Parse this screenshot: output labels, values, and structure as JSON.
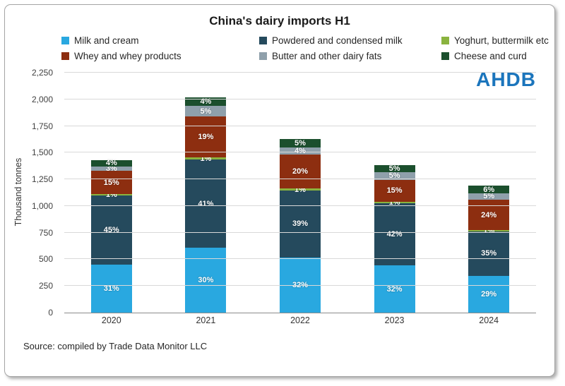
{
  "logo": "AHDB",
  "source": "Source: compiled by Trade Data Monitor LLC",
  "chart_data": {
    "type": "bar",
    "stacked": true,
    "title": "China's dairy imports H1",
    "xlabel": "",
    "ylabel": "Thousand tonnes",
    "ylim": [
      0,
      2250
    ],
    "grid": "horizontal",
    "legend_position": "top",
    "y_ticks": [
      "0",
      "250",
      "500",
      "750",
      "1,000",
      "1,250",
      "1,500",
      "1,750",
      "2,000",
      "2,250"
    ],
    "categories": [
      "2020",
      "2021",
      "2022",
      "2023",
      "2024"
    ],
    "totals_thousand_tonnes": [
      1430,
      2020,
      1630,
      1385,
      1190
    ],
    "series": [
      {
        "name": "Milk and cream",
        "color": "#29a8e0",
        "pct": [
          31,
          30,
          32,
          32,
          29
        ]
      },
      {
        "name": "Powdered and condensed milk",
        "color": "#254a5d",
        "pct": [
          45,
          41,
          39,
          42,
          35
        ]
      },
      {
        "name": "Yoghurt, buttermilk etc",
        "color": "#8ab33f",
        "pct": [
          1,
          1,
          1,
          1,
          1
        ]
      },
      {
        "name": "Whey and whey products",
        "color": "#8d2e10",
        "pct": [
          15,
          19,
          20,
          15,
          24
        ]
      },
      {
        "name": "Butter and other dairy fats",
        "color": "#8fa0ab",
        "pct": [
          3,
          5,
          4,
          5,
          5
        ]
      },
      {
        "name": "Cheese and curd",
        "color": "#1b4f2d",
        "pct": [
          4,
          4,
          5,
          5,
          6
        ]
      }
    ]
  }
}
